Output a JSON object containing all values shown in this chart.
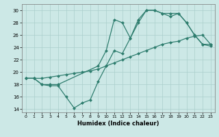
{
  "title": "",
  "xlabel": "Humidex (Indice chaleur)",
  "xlim": [
    -0.5,
    23.5
  ],
  "ylim": [
    13.5,
    31
  ],
  "yticks": [
    14,
    16,
    18,
    20,
    22,
    24,
    26,
    28,
    30
  ],
  "xticks": [
    0,
    1,
    2,
    3,
    4,
    5,
    6,
    7,
    8,
    9,
    10,
    11,
    12,
    13,
    14,
    15,
    16,
    17,
    18,
    19,
    20,
    21,
    22,
    23
  ],
  "bg_color": "#cce8e6",
  "line_color": "#2e7d6e",
  "grid_color": "#aacfcc",
  "line1_x": [
    0,
    1,
    2,
    3,
    4,
    5,
    6,
    7,
    8,
    9,
    10,
    11,
    12,
    13,
    14,
    15,
    16,
    17,
    18,
    19,
    20,
    21,
    22,
    23
  ],
  "line1_y": [
    19.0,
    19.0,
    19.0,
    19.2,
    19.4,
    19.6,
    19.8,
    20.0,
    20.2,
    20.5,
    21.0,
    21.5,
    22.0,
    22.5,
    23.0,
    23.5,
    24.0,
    24.5,
    24.8,
    25.0,
    25.5,
    25.8,
    26.0,
    24.5
  ],
  "line2_x": [
    0,
    1,
    2,
    3,
    4,
    9,
    10,
    11,
    12,
    13,
    14,
    15,
    16,
    17,
    18,
    19,
    20,
    21,
    22,
    23
  ],
  "line2_y": [
    19.0,
    19.0,
    18.0,
    18.0,
    18.0,
    21.0,
    23.5,
    28.5,
    28.0,
    25.5,
    28.5,
    30.0,
    30.0,
    29.5,
    29.0,
    29.5,
    28.0,
    26.0,
    24.5,
    24.5
  ],
  "line3_x": [
    0,
    1,
    2,
    3,
    4,
    5,
    6,
    7,
    8,
    9,
    10,
    11,
    12,
    13,
    14,
    15,
    16,
    17,
    18,
    19,
    20,
    21,
    22,
    23
  ],
  "line3_y": [
    19.0,
    19.0,
    18.0,
    17.8,
    17.8,
    16.0,
    14.2,
    15.0,
    15.5,
    18.5,
    21.0,
    23.5,
    23.0,
    25.5,
    28.0,
    30.0,
    30.0,
    29.5,
    29.5,
    29.5,
    28.0,
    26.0,
    24.5,
    24.2
  ],
  "marker_size": 2.5,
  "line_width": 0.9,
  "xlabel_fontsize": 6,
  "tick_fontsize": 4.5,
  "ytick_fontsize": 5
}
